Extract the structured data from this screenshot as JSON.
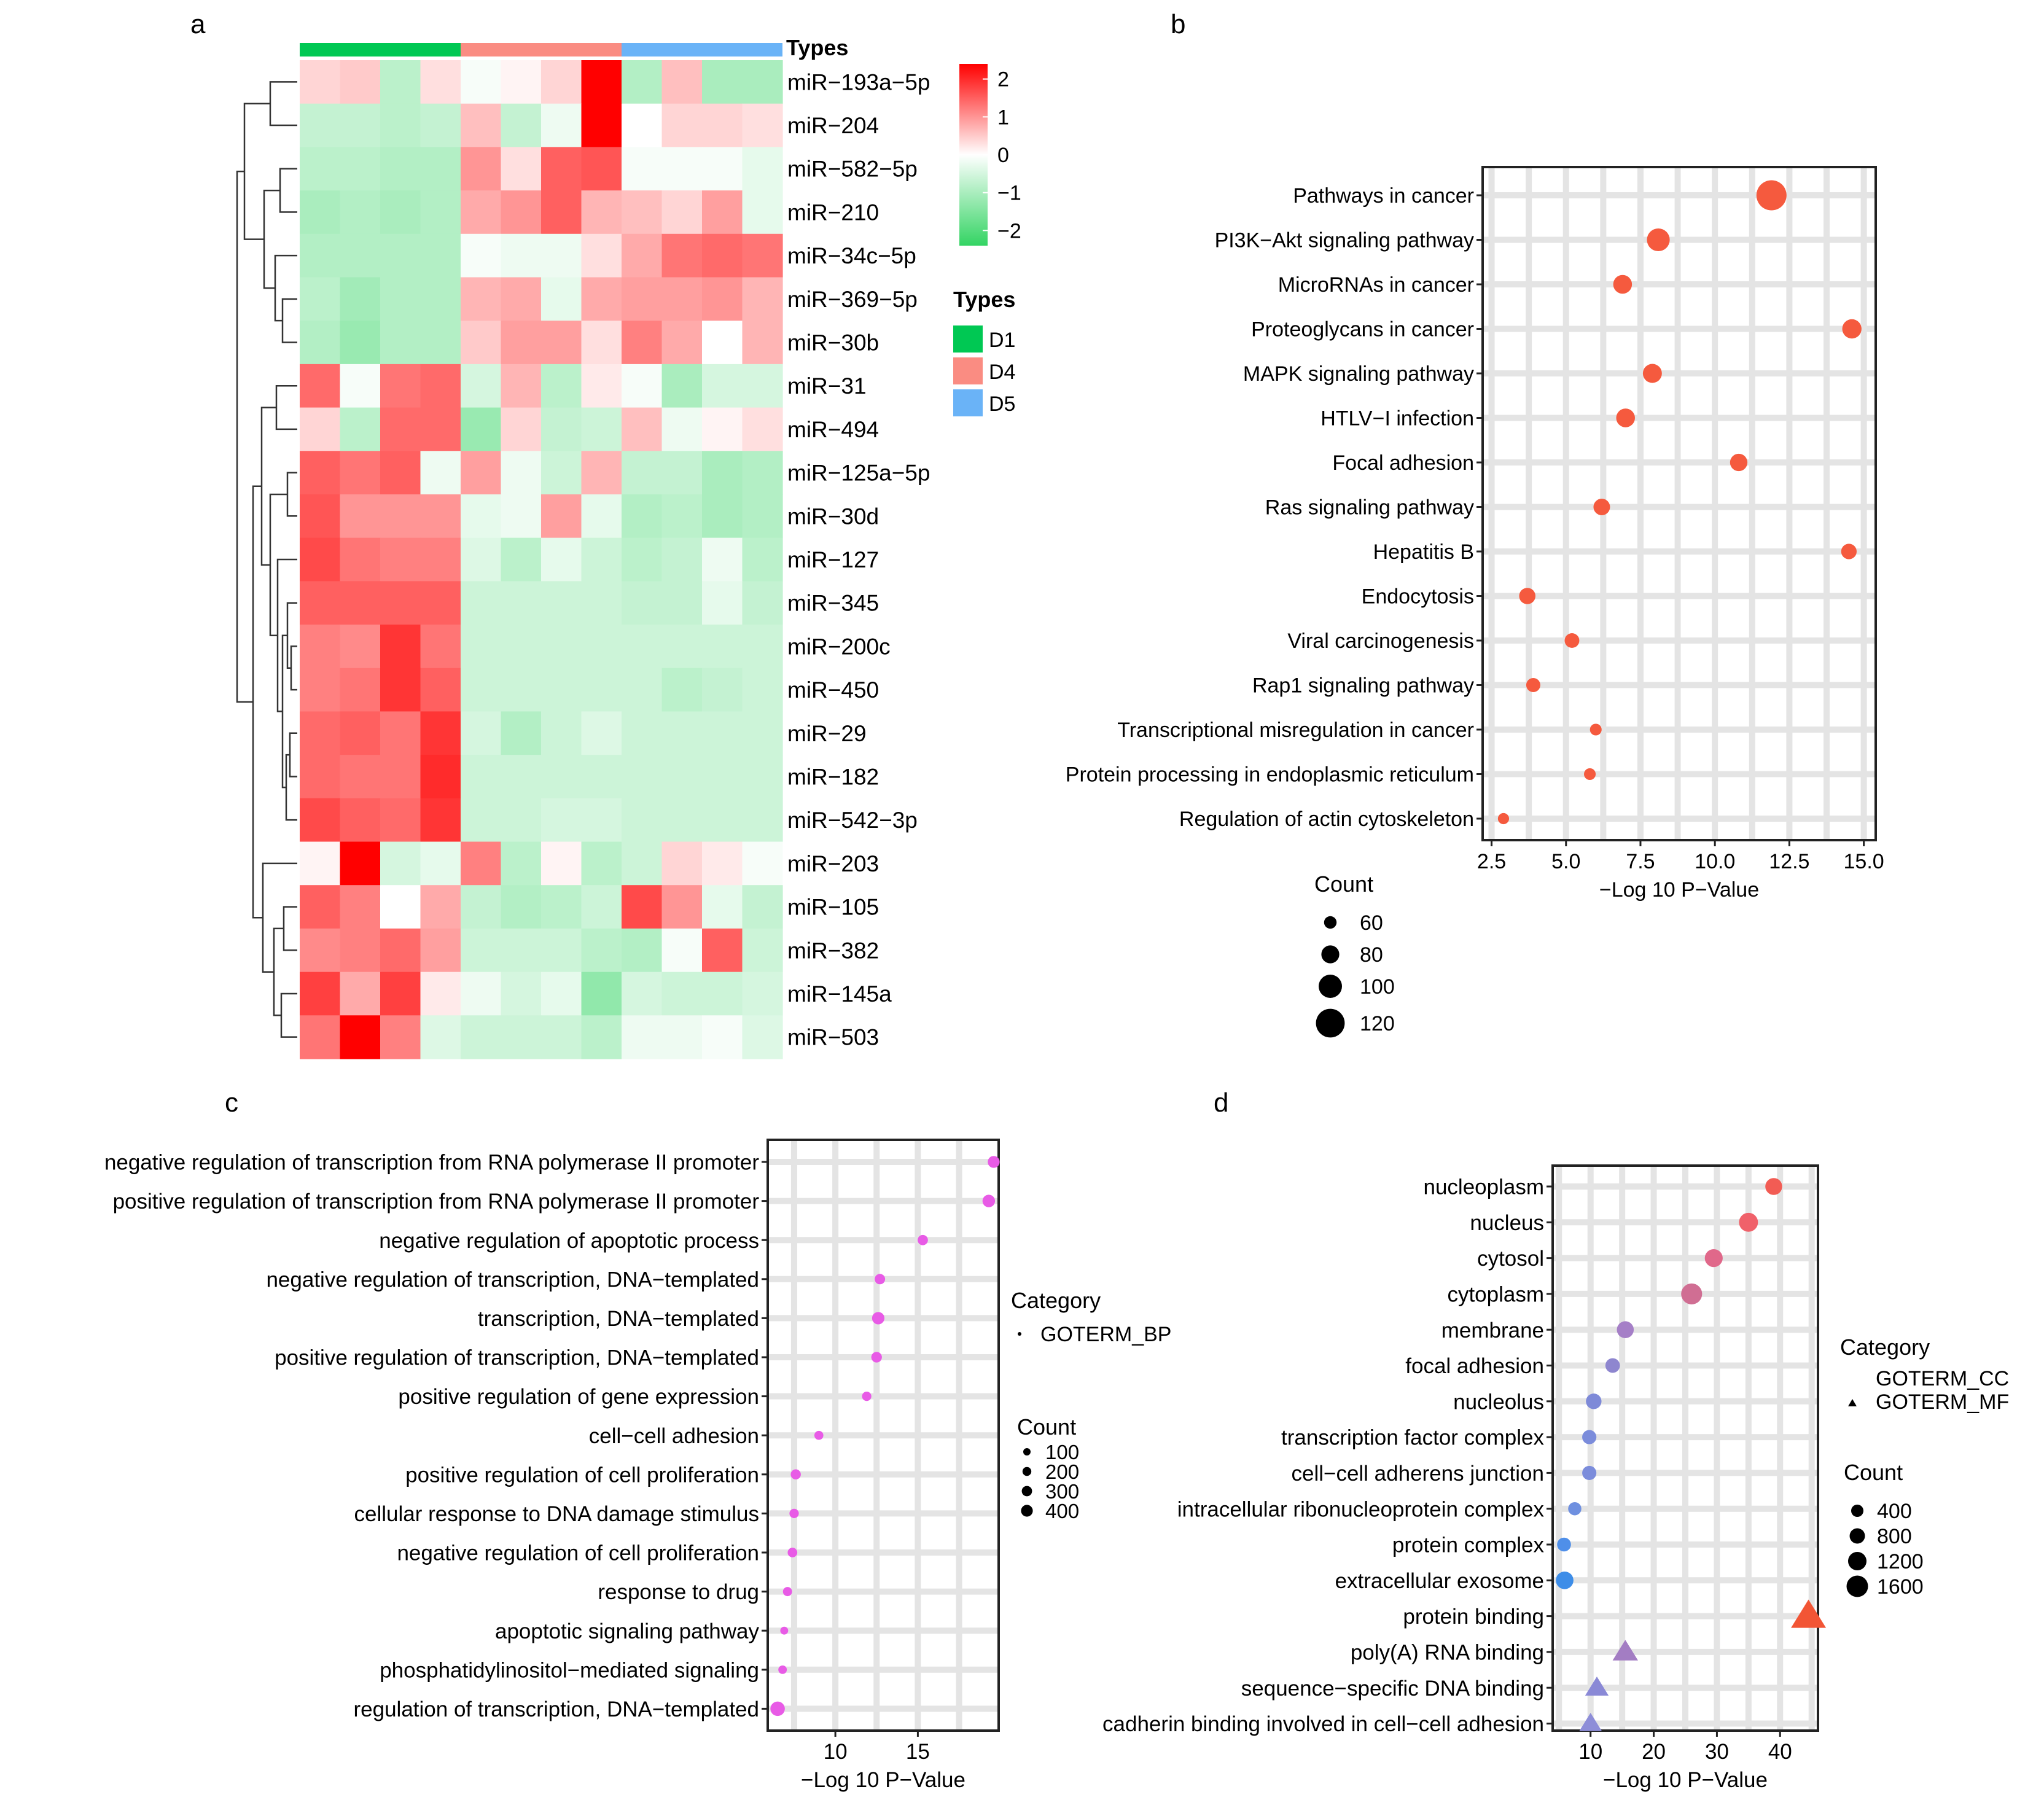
{
  "colors": {
    "heat_low": "#33d463",
    "heat_mid": "#ffffff",
    "heat_high": "#ff0000",
    "D1": "#00c853",
    "D4": "#fa8c82",
    "D5": "#6ab3f7",
    "bp_point": "#e85be6",
    "kegg_point": "#f55a3e"
  },
  "chart_data": [
    {
      "panel": "a",
      "type": "heatmap",
      "color_scale": {
        "min": -2.4,
        "max": 2.4,
        "ticks": [
          "2",
          "1",
          "0",
          "−1",
          "−2"
        ]
      },
      "legend_title": "Types",
      "column_annotation_title": "Types",
      "groups": [
        {
          "name": "D1",
          "color_key": "D1",
          "columns": 4
        },
        {
          "name": "D4",
          "color_key": "D4",
          "columns": 4
        },
        {
          "name": "D5",
          "color_key": "D5",
          "columns": 4
        }
      ],
      "rows": [
        "miR−193a−5p",
        "miR−204",
        "miR−582−5p",
        "miR−210",
        "miR−34c−5p",
        "miR−369−5p",
        "miR−30b",
        "miR−31",
        "miR−494",
        "miR−125a−5p",
        "miR−30d",
        "miR−127",
        "miR−345",
        "miR−200c",
        "miR−450",
        "miR−29",
        "miR−182",
        "miR−542−3p",
        "miR−203",
        "miR−105",
        "miR−382",
        "miR−145a",
        "miR−503"
      ],
      "values": [
        [
          0.4,
          0.5,
          -0.8,
          0.3,
          -0.1,
          0.1,
          0.4,
          2.4,
          -0.9,
          0.6,
          -1.0,
          -1.0
        ],
        [
          -0.7,
          -0.7,
          -0.8,
          -0.7,
          0.6,
          -0.7,
          -0.2,
          2.5,
          0.0,
          0.4,
          0.4,
          0.3
        ],
        [
          -0.8,
          -0.8,
          -0.9,
          -0.9,
          1.0,
          0.3,
          1.5,
          1.6,
          -0.1,
          -0.1,
          -0.1,
          -0.3
        ],
        [
          -1.0,
          -0.9,
          -1.0,
          -0.9,
          0.8,
          1.0,
          1.5,
          0.7,
          0.6,
          0.4,
          0.9,
          -0.3
        ],
        [
          -0.9,
          -0.9,
          -0.9,
          -0.9,
          -0.1,
          -0.2,
          -0.2,
          0.3,
          0.8,
          1.3,
          1.4,
          1.3
        ],
        [
          -0.8,
          -1.1,
          -0.9,
          -0.9,
          0.7,
          0.8,
          -0.3,
          0.8,
          0.9,
          0.9,
          1.0,
          0.7
        ],
        [
          -0.9,
          -1.2,
          -0.9,
          -0.9,
          0.5,
          0.9,
          0.9,
          0.3,
          1.2,
          0.8,
          0.0,
          0.7
        ],
        [
          1.4,
          -0.1,
          1.3,
          1.4,
          -0.5,
          0.7,
          -0.8,
          0.2,
          -0.1,
          -1.0,
          -0.5,
          -0.5
        ],
        [
          0.4,
          -0.8,
          1.4,
          1.4,
          -1.2,
          0.4,
          -0.7,
          -0.6,
          0.6,
          -0.2,
          0.1,
          0.3
        ],
        [
          1.5,
          1.3,
          1.5,
          -0.2,
          0.9,
          -0.2,
          -0.6,
          0.7,
          -0.7,
          -0.7,
          -1.0,
          -0.9
        ],
        [
          1.6,
          1.0,
          1.0,
          1.0,
          -0.3,
          -0.2,
          0.9,
          -0.3,
          -0.9,
          -0.8,
          -1.0,
          -0.9
        ],
        [
          1.7,
          1.3,
          1.2,
          1.2,
          -0.4,
          -0.8,
          -0.3,
          -0.6,
          -0.8,
          -0.7,
          -0.2,
          -0.8
        ],
        [
          1.5,
          1.5,
          1.5,
          1.5,
          -0.6,
          -0.6,
          -0.6,
          -0.6,
          -0.7,
          -0.7,
          -0.3,
          -0.7
        ],
        [
          1.2,
          1.1,
          1.9,
          1.3,
          -0.6,
          -0.6,
          -0.6,
          -0.6,
          -0.6,
          -0.6,
          -0.6,
          -0.6
        ],
        [
          1.2,
          1.3,
          1.9,
          1.5,
          -0.6,
          -0.6,
          -0.6,
          -0.6,
          -0.6,
          -0.8,
          -0.7,
          -0.6
        ],
        [
          1.4,
          1.5,
          1.3,
          1.9,
          -0.5,
          -0.9,
          -0.6,
          -0.4,
          -0.6,
          -0.6,
          -0.6,
          -0.6
        ],
        [
          1.4,
          1.3,
          1.3,
          2.0,
          -0.6,
          -0.6,
          -0.6,
          -0.6,
          -0.6,
          -0.6,
          -0.6,
          -0.6
        ],
        [
          1.7,
          1.5,
          1.4,
          1.9,
          -0.6,
          -0.6,
          -0.5,
          -0.5,
          -0.6,
          -0.6,
          -0.6,
          -0.6
        ],
        [
          0.1,
          2.4,
          -0.5,
          -0.3,
          1.2,
          -0.8,
          0.1,
          -0.8,
          -0.6,
          0.4,
          0.2,
          -0.1
        ],
        [
          1.5,
          1.2,
          0.0,
          0.8,
          -0.7,
          -0.9,
          -0.8,
          -0.6,
          1.7,
          1.0,
          -0.3,
          -0.7
        ],
        [
          1.1,
          1.2,
          1.4,
          0.9,
          -0.6,
          -0.6,
          -0.6,
          -0.8,
          -0.9,
          -0.1,
          1.5,
          -0.6
        ],
        [
          1.8,
          0.8,
          1.8,
          0.2,
          -0.2,
          -0.5,
          -0.3,
          -1.3,
          -0.5,
          -0.6,
          -0.6,
          -0.5
        ],
        [
          1.3,
          2.4,
          1.2,
          -0.4,
          -0.6,
          -0.6,
          -0.6,
          -0.8,
          -0.2,
          -0.2,
          -0.1,
          -0.4
        ]
      ]
    },
    {
      "panel": "b",
      "type": "scatter",
      "xlabel": "−Log 10 P−Value",
      "xlim": [
        2.2,
        15.4
      ],
      "xticks": [
        2.5,
        5.0,
        7.5,
        10.0,
        12.5,
        15.0
      ],
      "xtick_labels": [
        "2.5",
        "5.0",
        "7.5",
        "10.0",
        "12.5",
        "15.0"
      ],
      "size_legend_title": "Count",
      "size_legend": [
        60,
        80,
        100,
        120
      ],
      "size_range": [
        50,
        130
      ],
      "points": [
        {
          "term": "Pathways in cancer",
          "x": 11.9,
          "count": 125
        },
        {
          "term": "PI3K−Akt signaling pathway",
          "x": 8.1,
          "count": 98
        },
        {
          "term": "MicroRNAs in cancer",
          "x": 6.9,
          "count": 83
        },
        {
          "term": "Proteoglycans in cancer",
          "x": 14.6,
          "count": 85
        },
        {
          "term": "MAPK signaling pathway",
          "x": 7.9,
          "count": 84
        },
        {
          "term": "HTLV−I infection",
          "x": 7.0,
          "count": 83
        },
        {
          "term": "Focal adhesion",
          "x": 10.8,
          "count": 78
        },
        {
          "term": "Ras signaling pathway",
          "x": 6.2,
          "count": 75
        },
        {
          "term": "Hepatitis B",
          "x": 14.5,
          "count": 71
        },
        {
          "term": "Endocytosis",
          "x": 3.7,
          "count": 74
        },
        {
          "term": "Viral carcinogenesis",
          "x": 5.2,
          "count": 68
        },
        {
          "term": "Rap1 signaling pathway",
          "x": 3.9,
          "count": 66
        },
        {
          "term": "Transcriptional misregulation in cancer",
          "x": 6.0,
          "count": 57
        },
        {
          "term": "Protein processing in endoplasmic reticulum",
          "x": 5.8,
          "count": 57
        },
        {
          "term": "Regulation of actin cytoskeleton",
          "x": 2.9,
          "count": 55
        }
      ]
    },
    {
      "panel": "c",
      "type": "scatter",
      "xlabel": "−Log 10 P−Value",
      "xlim": [
        5.9,
        19.9
      ],
      "xticks": [
        10,
        15
      ],
      "xtick_labels": [
        "10",
        "15"
      ],
      "category_legend_title": "Category",
      "categories": [
        "GOTERM_BP"
      ],
      "size_legend_title": "Count",
      "size_legend": [
        100,
        200,
        300,
        400
      ],
      "points": [
        {
          "term": "negative regulation of transcription from RNA polymerase II promoter",
          "x": 19.6,
          "count": 360
        },
        {
          "term": "positive regulation of transcription from RNA polymerase II promoter",
          "x": 19.3,
          "count": 400
        },
        {
          "term": "negative regulation of apoptotic process",
          "x": 15.3,
          "count": 260
        },
        {
          "term": "negative regulation of transcription, DNA−templated",
          "x": 12.7,
          "count": 270
        },
        {
          "term": "transcription, DNA−templated",
          "x": 12.6,
          "count": 390
        },
        {
          "term": "positive regulation of transcription, DNA−templated",
          "x": 12.5,
          "count": 280
        },
        {
          "term": "positive regulation of gene expression",
          "x": 11.9,
          "count": 200
        },
        {
          "term": "cell−cell adhesion",
          "x": 9.0,
          "count": 180
        },
        {
          "term": "positive regulation of cell proliferation",
          "x": 7.6,
          "count": 250
        },
        {
          "term": "cellular response to DNA damage stimulus",
          "x": 7.5,
          "count": 200
        },
        {
          "term": "negative regulation of cell proliferation",
          "x": 7.4,
          "count": 220
        },
        {
          "term": "response to drug",
          "x": 7.1,
          "count": 190
        },
        {
          "term": "apoptotic signaling pathway",
          "x": 6.9,
          "count": 110
        },
        {
          "term": "phosphatidylinositol−mediated signaling",
          "x": 6.8,
          "count": 150
        },
        {
          "term": "regulation of transcription, DNA−templated",
          "x": 6.5,
          "count": 520
        }
      ]
    },
    {
      "panel": "d",
      "type": "scatter",
      "xlabel": "−Log 10 P−Value",
      "xlim": [
        4,
        46
      ],
      "xticks": [
        10,
        20,
        30,
        40
      ],
      "xtick_labels": [
        "10",
        "20",
        "30",
        "40"
      ],
      "category_legend_title": "Category",
      "categories": [
        "GOTERM_CC",
        "GOTERM_MF"
      ],
      "size_legend_title": "Count",
      "size_legend": [
        400,
        800,
        1200,
        1600
      ],
      "points": [
        {
          "term": "nucleoplasm",
          "x": 39.0,
          "count": 1050,
          "category": "GOTERM_CC",
          "color": "#f25c54"
        },
        {
          "term": "nucleus",
          "x": 35.0,
          "count": 1350,
          "category": "GOTERM_CC",
          "color": "#f0616a"
        },
        {
          "term": "cytosol",
          "x": 29.5,
          "count": 1200,
          "category": "GOTERM_CC",
          "color": "#e0688a"
        },
        {
          "term": "cytoplasm",
          "x": 26.0,
          "count": 1650,
          "category": "GOTERM_CC",
          "color": "#d06e93"
        },
        {
          "term": "membrane",
          "x": 15.5,
          "count": 1050,
          "category": "GOTERM_CC",
          "color": "#a57fc7"
        },
        {
          "term": "focal adhesion",
          "x": 13.5,
          "count": 700,
          "category": "GOTERM_CC",
          "color": "#8e86cf"
        },
        {
          "term": "nucleolus",
          "x": 10.5,
          "count": 850,
          "category": "GOTERM_CC",
          "color": "#7e8ad8"
        },
        {
          "term": "transcription factor complex",
          "x": 9.8,
          "count": 650,
          "category": "GOTERM_CC",
          "color": "#7b8cdb"
        },
        {
          "term": "cell−cell adherens junction",
          "x": 9.8,
          "count": 650,
          "category": "GOTERM_CC",
          "color": "#7b8cdb"
        },
        {
          "term": "intracellular ribonucleoprotein complex",
          "x": 7.5,
          "count": 500,
          "category": "GOTERM_CC",
          "color": "#6f90e0"
        },
        {
          "term": "protein complex",
          "x": 5.8,
          "count": 600,
          "category": "GOTERM_CC",
          "color": "#4f8fe9"
        },
        {
          "term": "extracellular exosome",
          "x": 5.9,
          "count": 1150,
          "category": "GOTERM_CC",
          "color": "#3d8de8"
        },
        {
          "term": "protein binding",
          "x": 44.5,
          "count": 2200,
          "category": "GOTERM_MF",
          "color": "#f25535"
        },
        {
          "term": "poly(A) RNA binding",
          "x": 15.5,
          "count": 1200,
          "category": "GOTERM_MF",
          "color": "#a37dc3"
        },
        {
          "term": "sequence−specific DNA binding",
          "x": 11.0,
          "count": 1000,
          "category": "GOTERM_MF",
          "color": "#8a89d6"
        },
        {
          "term": "cadherin binding involved in cell−cell adhesion",
          "x": 10.0,
          "count": 900,
          "category": "GOTERM_MF",
          "color": "#8e8ed8"
        }
      ]
    }
  ]
}
